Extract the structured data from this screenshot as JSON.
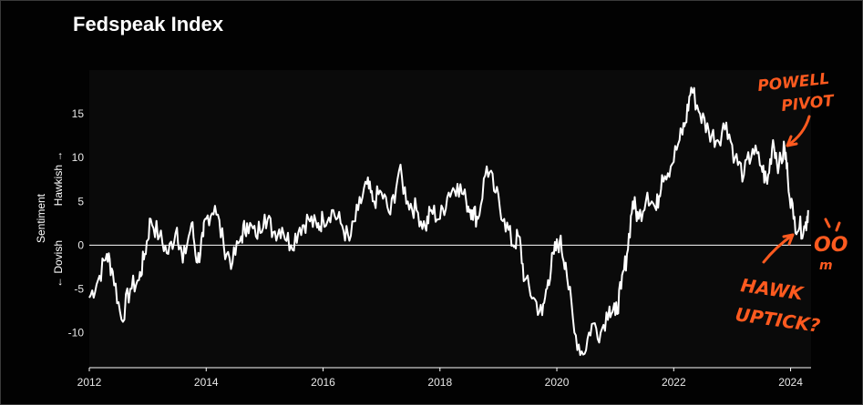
{
  "page": {
    "title": "Fedspeak Index"
  },
  "chart_data": {
    "type": "line",
    "title": "Fedspeak Index",
    "ylabel_top": "Hawkish →",
    "ylabel_mid": "Sentiment",
    "ylabel_bottom": "← Dovish",
    "xlabel": "",
    "ylim": [
      -14,
      20
    ],
    "xlim": [
      2012.0,
      2024.35
    ],
    "x_ticks": [
      "2012",
      "2014",
      "2016",
      "2018",
      "2020",
      "2022",
      "2024"
    ],
    "y_ticks": [
      "15",
      "10",
      "5",
      "0",
      "-5",
      "-10"
    ],
    "zero_line": true,
    "grid": false,
    "series": [
      {
        "name": "",
        "points": [
          [
            2012.0,
            -6
          ],
          [
            2012.15,
            -4
          ],
          [
            2012.3,
            -1
          ],
          [
            2012.4,
            -3
          ],
          [
            2012.55,
            -8.5
          ],
          [
            2012.7,
            -5
          ],
          [
            2012.85,
            -4
          ],
          [
            2012.95,
            -1
          ],
          [
            2013.05,
            3
          ],
          [
            2013.2,
            1
          ],
          [
            2013.35,
            -1
          ],
          [
            2013.5,
            2
          ],
          [
            2013.6,
            -2
          ],
          [
            2013.75,
            2.5
          ],
          [
            2013.85,
            -2
          ],
          [
            2013.95,
            1
          ],
          [
            2014.0,
            3
          ],
          [
            2014.15,
            4.5
          ],
          [
            2014.3,
            0
          ],
          [
            2014.45,
            -2
          ],
          [
            2014.6,
            1
          ],
          [
            2014.7,
            2.5
          ],
          [
            2014.85,
            1
          ],
          [
            2015.0,
            3.5
          ],
          [
            2015.15,
            1.5
          ],
          [
            2015.3,
            2
          ],
          [
            2015.45,
            0
          ],
          [
            2015.6,
            2
          ],
          [
            2015.75,
            3
          ],
          [
            2015.9,
            2
          ],
          [
            2016.0,
            3
          ],
          [
            2016.15,
            4
          ],
          [
            2016.3,
            2.5
          ],
          [
            2016.45,
            0.5
          ],
          [
            2016.6,
            4
          ],
          [
            2016.75,
            7
          ],
          [
            2016.85,
            5
          ],
          [
            2017.0,
            6
          ],
          [
            2017.15,
            3.5
          ],
          [
            2017.3,
            8.5
          ],
          [
            2017.45,
            5
          ],
          [
            2017.6,
            4
          ],
          [
            2017.75,
            2
          ],
          [
            2017.85,
            4
          ],
          [
            2018.0,
            3
          ],
          [
            2018.15,
            6
          ],
          [
            2018.3,
            7
          ],
          [
            2018.45,
            5
          ],
          [
            2018.55,
            4
          ],
          [
            2018.65,
            3
          ],
          [
            2018.8,
            9
          ],
          [
            2018.95,
            6
          ],
          [
            2019.1,
            3
          ],
          [
            2019.25,
            0
          ],
          [
            2019.35,
            1
          ],
          [
            2019.45,
            -4
          ],
          [
            2019.6,
            -6
          ],
          [
            2019.75,
            -8
          ],
          [
            2019.85,
            -4
          ],
          [
            2019.95,
            -1
          ],
          [
            2020.05,
            0.5
          ],
          [
            2020.15,
            -2
          ],
          [
            2020.3,
            -10
          ],
          [
            2020.45,
            -12.5
          ],
          [
            2020.6,
            -9
          ],
          [
            2020.75,
            -10
          ],
          [
            2020.9,
            -7
          ],
          [
            2021.0,
            -8
          ],
          [
            2021.1,
            -5
          ],
          [
            2021.2,
            -1
          ],
          [
            2021.3,
            5
          ],
          [
            2021.4,
            3
          ],
          [
            2021.55,
            6
          ],
          [
            2021.7,
            4
          ],
          [
            2021.8,
            8
          ],
          [
            2021.95,
            9
          ],
          [
            2022.1,
            12
          ],
          [
            2022.2,
            14
          ],
          [
            2022.3,
            18
          ],
          [
            2022.45,
            15
          ],
          [
            2022.6,
            13
          ],
          [
            2022.75,
            12
          ],
          [
            2022.9,
            14
          ],
          [
            2023.05,
            10
          ],
          [
            2023.2,
            8
          ],
          [
            2023.35,
            11
          ],
          [
            2023.5,
            9
          ],
          [
            2023.6,
            7
          ],
          [
            2023.7,
            12
          ],
          [
            2023.8,
            9
          ],
          [
            2023.9,
            11
          ],
          [
            2023.95,
            8
          ],
          [
            2024.05,
            3
          ],
          [
            2024.15,
            2
          ],
          [
            2024.25,
            2
          ],
          [
            2024.3,
            4
          ]
        ]
      }
    ]
  },
  "annotations": {
    "powell_line1": "POWELL",
    "powell_line2": "PIVOT",
    "hawk_line1": "HAWK",
    "hawk_line2": "UPTICK?",
    "eyes": "OO",
    "mouth": "m"
  },
  "colors": {
    "background": "#000000",
    "plot_bg": "#0a0a0a",
    "line": "#ffffff",
    "annotation": "#ff5a1f"
  }
}
